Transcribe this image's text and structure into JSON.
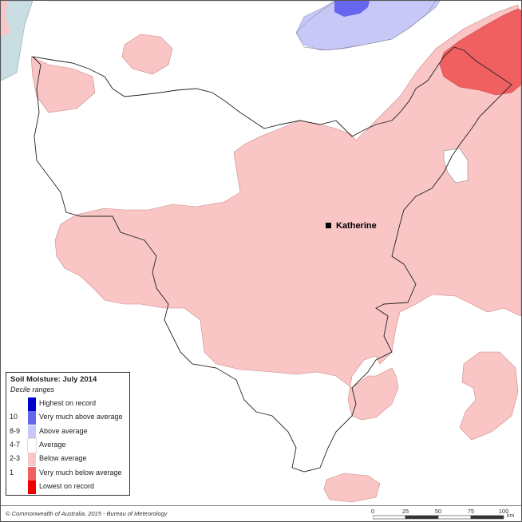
{
  "map": {
    "town": "Katherine"
  },
  "legend": {
    "title": "Soil Moisture: July 2014",
    "subtitle": "Decile ranges",
    "rows": [
      {
        "decile": "",
        "label": "Highest on record",
        "color": "#0000cc"
      },
      {
        "decile": "10",
        "label": "Very much above average",
        "color": "#6666ee"
      },
      {
        "decile": "8-9",
        "label": "Above average",
        "color": "#c8c8f8"
      },
      {
        "decile": "4-7",
        "label": "Average",
        "color": "#ffffff"
      },
      {
        "decile": "2-3",
        "label": "Below average",
        "color": "#f9c5c5"
      },
      {
        "decile": "1",
        "label": "Very much below average",
        "color": "#f06060"
      },
      {
        "decile": "",
        "label": "Lowest on record",
        "color": "#ee0000"
      }
    ]
  },
  "footer": {
    "copyright": "© Commonwealth of Australia, 2015 - Bureau of Meteorology",
    "scale_ticks": [
      "0",
      "25",
      "50",
      "75",
      "100"
    ],
    "scale_unit": "km"
  },
  "colors": {
    "below_average": "#f9c5c5",
    "very_much_below": "#f06060",
    "above_average": "#c8c8f8",
    "very_much_above": "#6666ee",
    "water": "#c9dde3"
  }
}
